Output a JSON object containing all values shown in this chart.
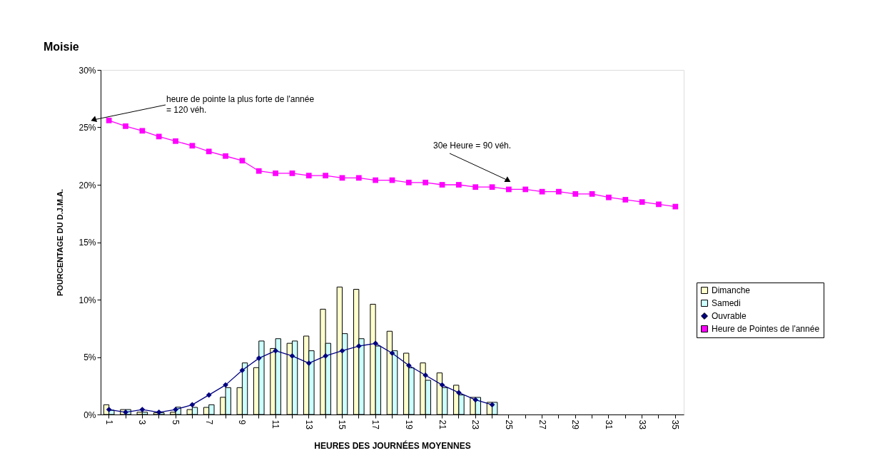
{
  "chart_data": {
    "type": "bar",
    "title": "Moisie",
    "xlabel": "HEURES DES JOURNÉES MOYENNES",
    "ylabel": "POURCENTAGE DU D.J.M.A.",
    "categories": [
      "1",
      null,
      "3",
      null,
      "5",
      null,
      "7",
      null,
      "9",
      null,
      "11",
      null,
      "13",
      null,
      "15",
      null,
      "17",
      null,
      "19",
      null,
      "21",
      null,
      "23",
      null,
      "25",
      null,
      "27",
      null,
      "29",
      null,
      "31",
      null,
      "33",
      null,
      "35"
    ],
    "series": [
      {
        "name": "Dimanche",
        "color": "#ffffcc",
        "values": [
          0.85,
          0.43,
          0.2,
          0.15,
          0.2,
          0.43,
          0.62,
          1.5,
          2.34,
          4.08,
          5.75,
          6.2,
          6.83,
          9.17,
          11.1,
          10.9,
          9.6,
          7.25,
          5.34,
          4.49,
          3.62,
          2.55,
          1.49,
          1.06,
          null,
          null,
          null,
          null,
          null,
          null,
          null,
          null,
          null,
          null,
          null
        ]
      },
      {
        "name": "Samedi",
        "color": "#ccffff",
        "values": [
          0.37,
          0.43,
          0.2,
          0.15,
          0.64,
          0.62,
          0.85,
          2.34,
          4.49,
          6.4,
          6.6,
          6.4,
          5.55,
          6.2,
          7.04,
          6.6,
          5.96,
          5.55,
          4.06,
          2.98,
          2.34,
          1.7,
          1.49,
          1.06,
          null,
          null,
          null,
          null,
          null,
          null,
          null,
          null,
          null,
          null,
          null
        ]
      },
      {
        "name": "Ouvrable",
        "type": "line",
        "marker": "diamond",
        "color": "#000080",
        "values": [
          0.43,
          0.2,
          0.43,
          0.2,
          0.43,
          0.85,
          1.7,
          2.57,
          3.85,
          4.9,
          5.55,
          5.1,
          4.47,
          5.1,
          5.55,
          5.96,
          6.19,
          5.34,
          4.27,
          3.42,
          2.57,
          1.9,
          1.28,
          0.85,
          null,
          null,
          null,
          null,
          null,
          null,
          null,
          null,
          null,
          null,
          null
        ]
      },
      {
        "name": "Heure de Pointes de l'année",
        "type": "line",
        "marker": "square",
        "color": "#ff00ff",
        "values": [
          25.6,
          25.1,
          24.7,
          24.2,
          23.8,
          23.4,
          22.9,
          22.5,
          22.1,
          21.2,
          21.0,
          21.0,
          20.8,
          20.8,
          20.6,
          20.6,
          20.4,
          20.4,
          20.2,
          20.2,
          20.0,
          20.0,
          19.8,
          19.8,
          19.6,
          19.6,
          19.4,
          19.4,
          19.2,
          19.2,
          18.9,
          18.7,
          18.5,
          18.3,
          18.1
        ]
      }
    ],
    "ylim": [
      0,
      30
    ],
    "yticks": [
      {
        "value": 0,
        "label": "0%"
      },
      {
        "value": 5,
        "label": "5%"
      },
      {
        "value": 10,
        "label": "10%"
      },
      {
        "value": 15,
        "label": "15%"
      },
      {
        "value": 20,
        "label": "20%"
      },
      {
        "value": 25,
        "label": "25%"
      },
      {
        "value": 30,
        "label": "30%"
      }
    ],
    "annotations": [
      "heure de pointe la plus forte de l'année\n= 120 véh.",
      "30e Heure = 90 véh."
    ],
    "grid": false,
    "legend": "right"
  }
}
